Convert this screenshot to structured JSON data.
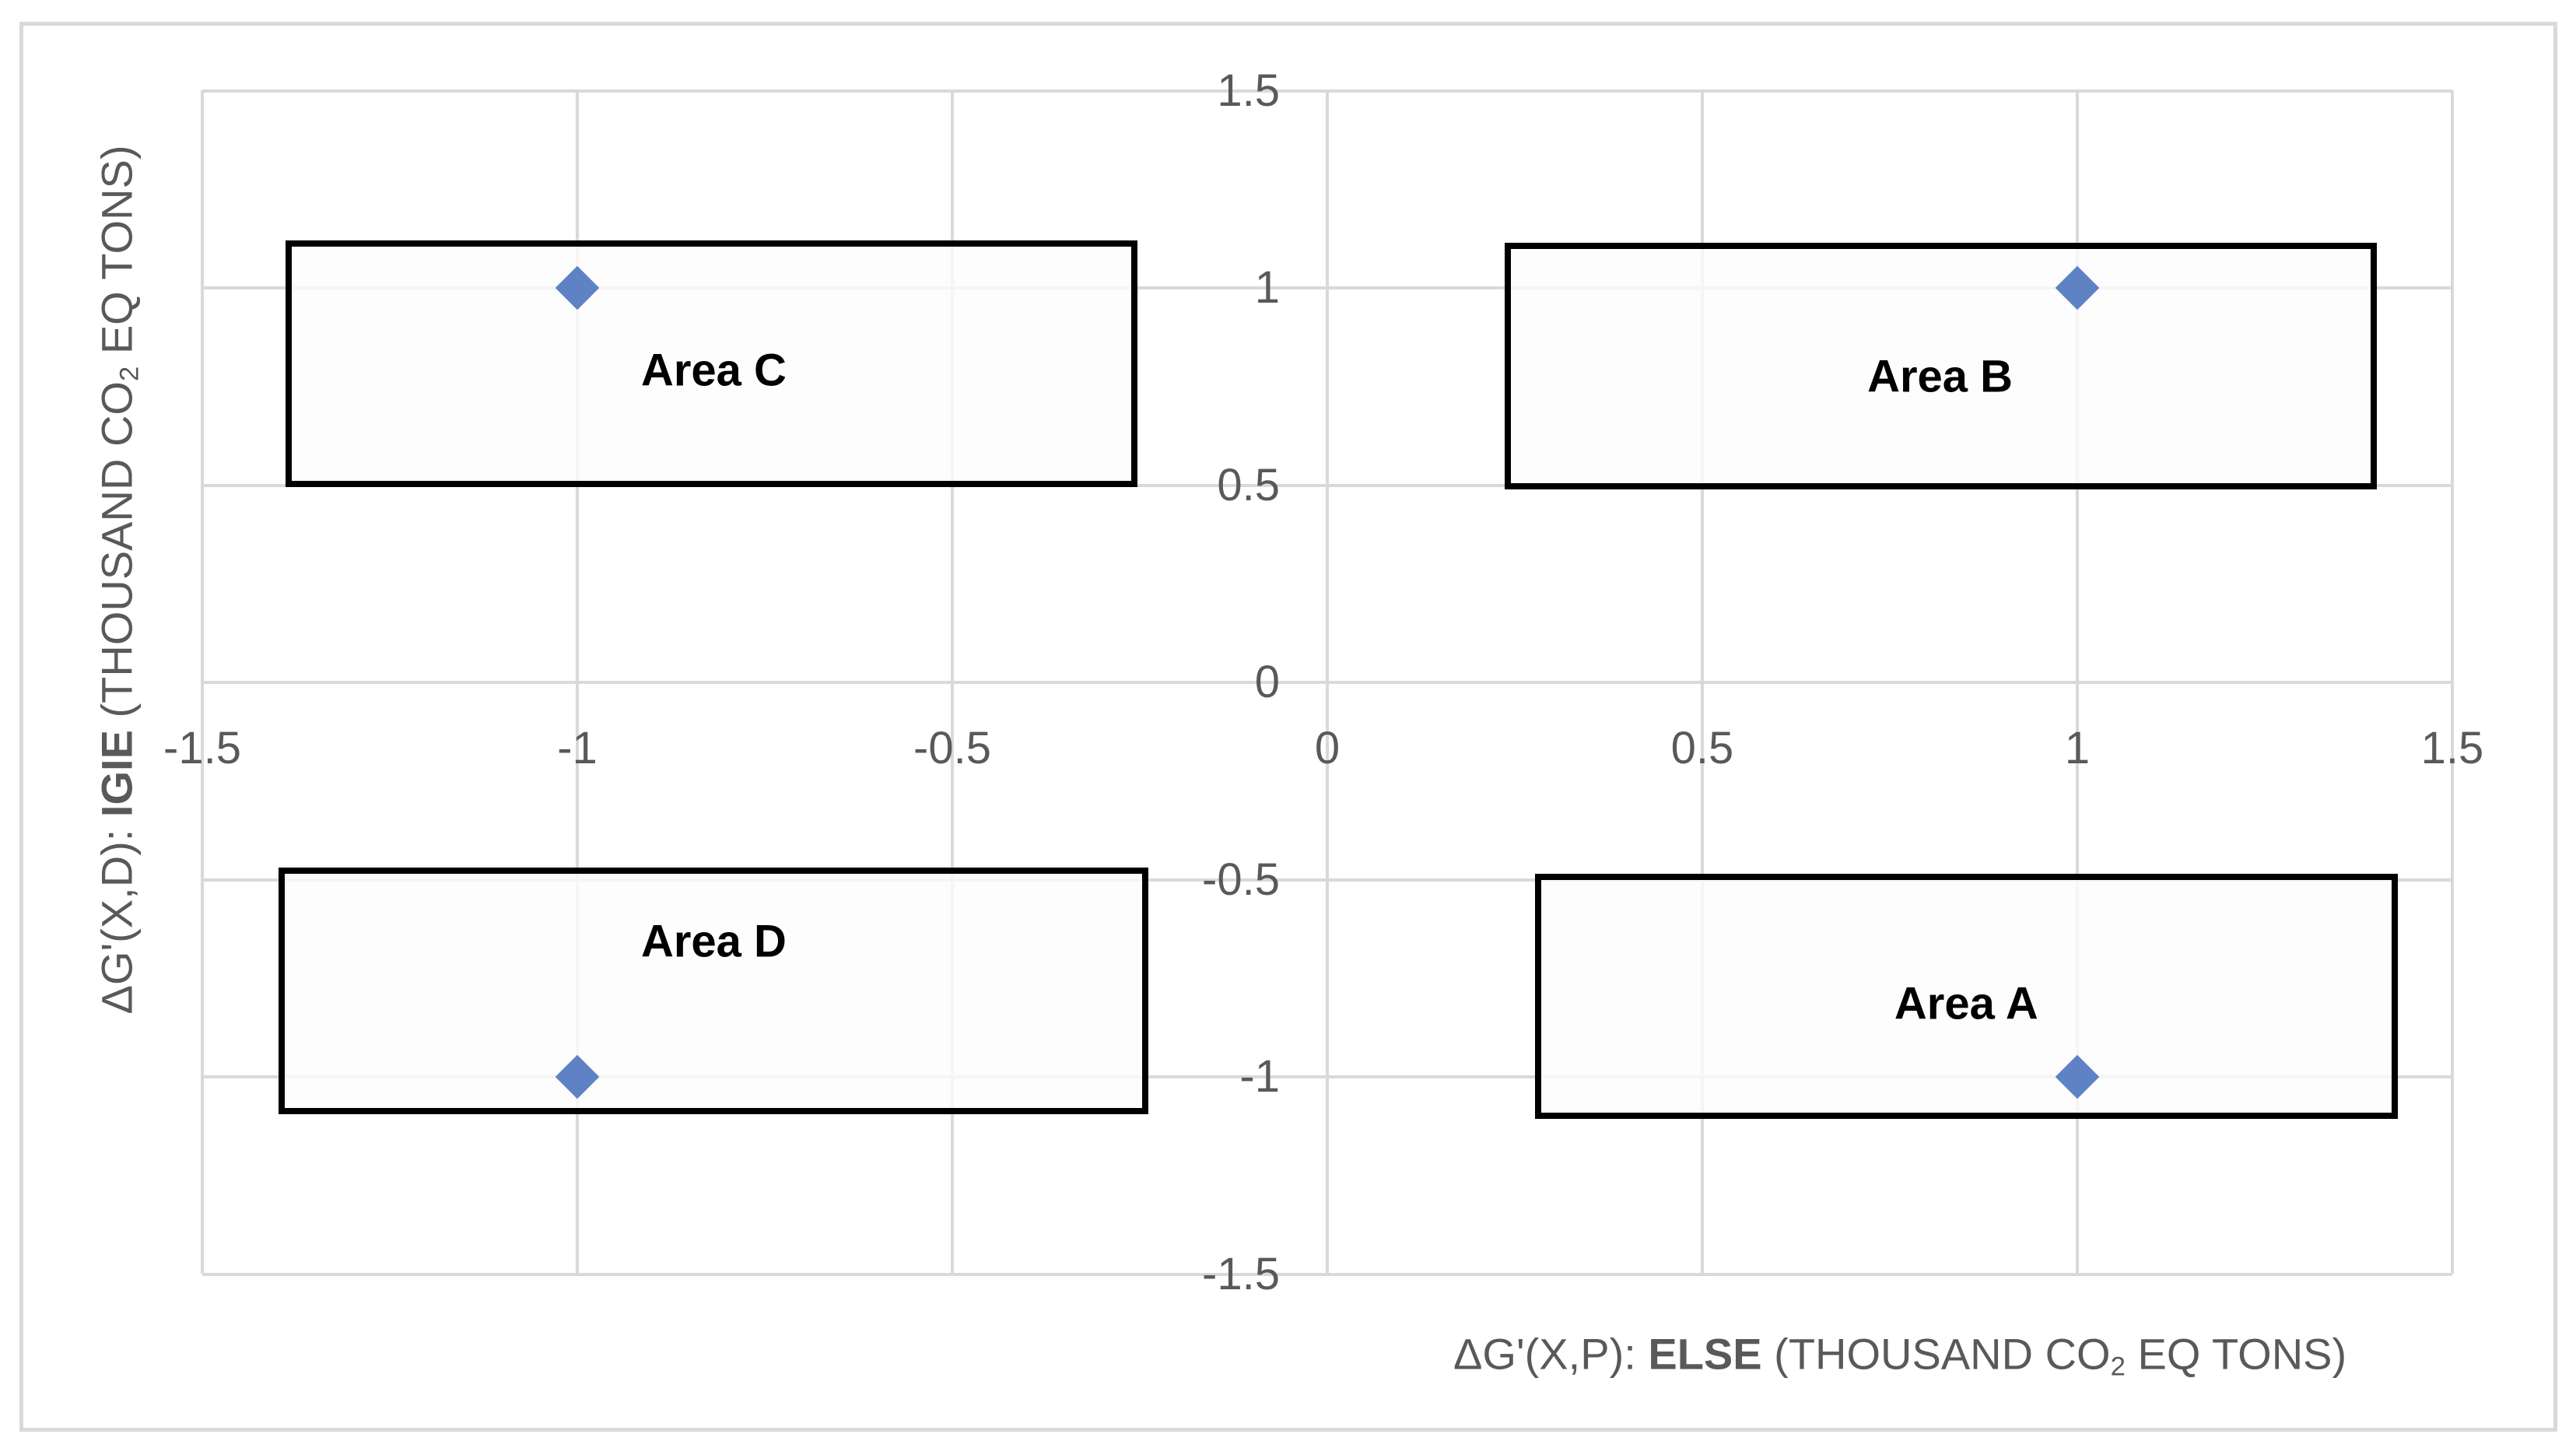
{
  "figure": {
    "background": "#FFFFFF",
    "border_color": "#D9D9D9"
  },
  "chart_data": {
    "type": "scatter",
    "grid": true,
    "gridline_color": "#D9D9D9",
    "tick_label_color": "#595959",
    "axis_title_color": "#595959",
    "marker_color": "#5E82C4",
    "area_border_color": "#000000",
    "area_fill": "rgba(252,252,252,0.78)",
    "x_axis": {
      "range": [
        -1.5,
        1.5
      ],
      "title_parts": [
        {
          "t": "ΔG'(X,P): "
        },
        {
          "t": "ELSE",
          "bold": true
        },
        {
          "t": " (THOUSAND CO"
        },
        {
          "t": "2",
          "sub": true
        },
        {
          "t": " EQ TONS)"
        }
      ],
      "ticks": [
        {
          "v": -1.5,
          "label": "-1.5"
        },
        {
          "v": -1,
          "label": "-1"
        },
        {
          "v": -0.5,
          "label": "-0.5"
        },
        {
          "v": 0,
          "label": "0"
        },
        {
          "v": 0.5,
          "label": "0.5"
        },
        {
          "v": 1,
          "label": "1"
        },
        {
          "v": 1.5,
          "label": "1.5"
        }
      ]
    },
    "y_axis": {
      "range": [
        -1.5,
        1.5
      ],
      "title_parts": [
        {
          "t": "ΔG'(X,D): "
        },
        {
          "t": "IGIE",
          "bold": true
        },
        {
          "t": " (THOUSAND CO"
        },
        {
          "t": "2",
          "sub": true
        },
        {
          "t": " EQ TONS)"
        }
      ],
      "ticks": [
        {
          "v": 1.5,
          "label": "1.5"
        },
        {
          "v": 1,
          "label": "1"
        },
        {
          "v": 0.5,
          "label": "0.5"
        },
        {
          "v": 0,
          "label": "0"
        },
        {
          "v": -0.5,
          "label": "-0.5"
        },
        {
          "v": -1,
          "label": "-1"
        },
        {
          "v": -1.5,
          "label": "-1.5"
        }
      ]
    },
    "series": [
      {
        "name": "points",
        "marker": "diamond",
        "points": [
          {
            "x": -1,
            "y": 1
          },
          {
            "x": 1,
            "y": 1
          },
          {
            "x": -1,
            "y": -1
          },
          {
            "x": 1,
            "y": -1
          }
        ]
      }
    ],
    "areas": [
      {
        "id": "c",
        "label": "Area C",
        "x_range": [
          -1.385,
          -0.257
        ],
        "y_range": [
          0.503,
          1.112
        ],
        "label_at": {
          "x": -0.818,
          "y": 0.791
        }
      },
      {
        "id": "b",
        "label": "Area B",
        "x_range": [
          0.241,
          1.395
        ],
        "y_range": [
          0.498,
          1.106
        ],
        "label_at": {
          "x": 0.817,
          "y": 0.775
        }
      },
      {
        "id": "d",
        "label": "Area D",
        "x_range": [
          -1.394,
          -0.243
        ],
        "y_range": [
          -1.087,
          -0.477
        ],
        "label_at": {
          "x": -0.818,
          "y": -0.657
        }
      },
      {
        "id": "a",
        "label": "Area A",
        "x_range": [
          0.281,
          1.423
        ],
        "y_range": [
          -1.099,
          -0.493
        ],
        "label_at": {
          "x": 0.852,
          "y": -0.815
        }
      }
    ]
  }
}
